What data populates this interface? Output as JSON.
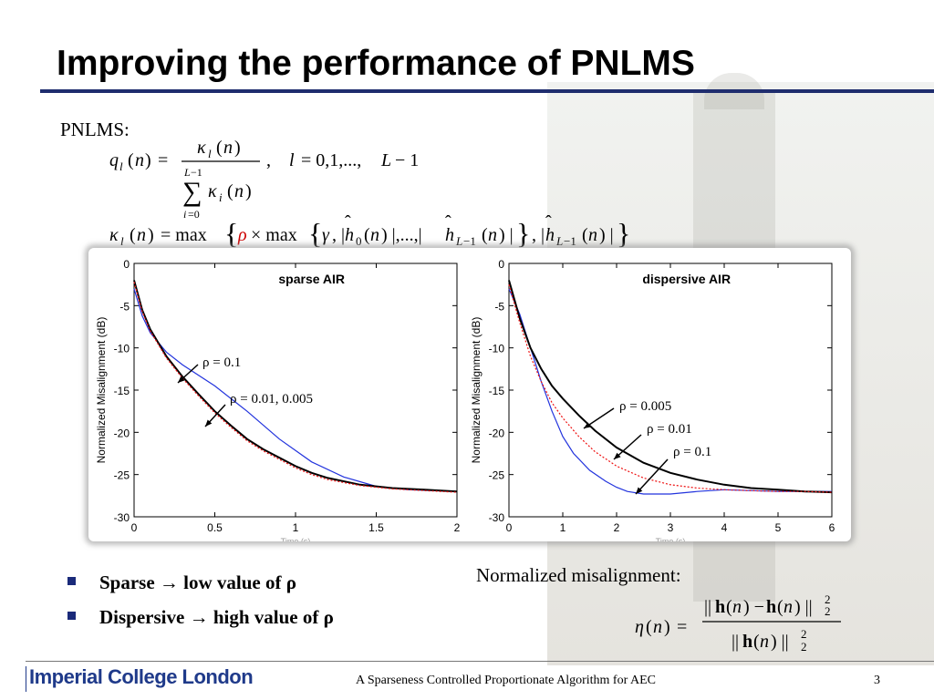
{
  "slide": {
    "title": "Improving the performance of PNLMS",
    "pnlms_label": "PNLMS:",
    "footer": "A Sparseness Controlled Proportionate Algorithm for AEC",
    "page_number": "3",
    "logo": "Imperial College London"
  },
  "bullets": [
    {
      "label": "Sparse →  low value of ρ"
    },
    {
      "label": "Dispersive → high value of ρ"
    }
  ],
  "misalignment_label": "Normalized misalignment:",
  "colors": {
    "title_rule": "#1f2d6e",
    "bullet": "#1a2a7a",
    "logo": "#1f3a8a",
    "rho": "#cc0000"
  },
  "chart_data": [
    {
      "type": "line",
      "title": "sparse AIR",
      "xlabel": "Time (s)",
      "ylabel": "Normalized Misalignment (dB)",
      "xlim": [
        0,
        2
      ],
      "ylim": [
        -30,
        0
      ],
      "xticks": [
        "0",
        "0.5",
        "1",
        "1.5",
        "2"
      ],
      "yticks": [
        "0",
        "-5",
        "-10",
        "-15",
        "-20",
        "-25",
        "-30"
      ],
      "annotations": [
        "ρ = 0.1",
        "ρ = 0.01,  0.005"
      ],
      "series": [
        {
          "color": "#2233dd",
          "x": [
            0,
            0.05,
            0.1,
            0.2,
            0.3,
            0.5,
            0.7,
            0.9,
            1.1,
            1.3,
            1.5,
            1.7,
            2.0
          ],
          "y": [
            -3,
            -6.2,
            -8.2,
            -10.5,
            -12,
            -14.5,
            -17.5,
            -20.8,
            -23.5,
            -25.3,
            -26.4,
            -26.8,
            -27
          ]
        },
        {
          "color": "#000000",
          "x": [
            0,
            0.05,
            0.1,
            0.2,
            0.3,
            0.4,
            0.5,
            0.6,
            0.7,
            0.8,
            0.9,
            1.0,
            1.1,
            1.2,
            1.4,
            1.6,
            1.8,
            2.0
          ],
          "y": [
            -2,
            -5.5,
            -7.8,
            -11,
            -13.4,
            -15.5,
            -17.5,
            -19.2,
            -20.8,
            -22,
            -23,
            -24,
            -24.8,
            -25.4,
            -26.2,
            -26.6,
            -26.8,
            -27
          ]
        },
        {
          "color": "#ee1111",
          "dashed": true,
          "x": [
            0,
            0.05,
            0.1,
            0.2,
            0.3,
            0.4,
            0.5,
            0.6,
            0.7,
            0.8,
            0.9,
            1.0,
            1.1,
            1.2,
            1.4,
            1.6,
            1.8,
            2.0
          ],
          "y": [
            -2.2,
            -5.7,
            -8,
            -11.2,
            -13.6,
            -15.7,
            -17.7,
            -19.4,
            -21,
            -22.2,
            -23.2,
            -24.2,
            -25,
            -25.6,
            -26.3,
            -26.7,
            -26.9,
            -27.1
          ]
        }
      ]
    },
    {
      "type": "line",
      "title": "dispersive AIR",
      "xlabel": "Time (s)",
      "ylabel": "Normalized Misalignment (dB)",
      "xlim": [
        0,
        6
      ],
      "ylim": [
        -30,
        0
      ],
      "xticks": [
        "0",
        "1",
        "2",
        "3",
        "4",
        "5",
        "6"
      ],
      "yticks": [
        "0",
        "-5",
        "-10",
        "-15",
        "-20",
        "-25",
        "-30"
      ],
      "annotations": [
        "ρ = 0.005",
        "ρ = 0.01",
        "ρ = 0.1"
      ],
      "series": [
        {
          "color": "#2233dd",
          "x": [
            0,
            0.2,
            0.4,
            0.6,
            0.8,
            1.0,
            1.2,
            1.5,
            1.8,
            2.0,
            2.2,
            2.5,
            3.0,
            3.5,
            4.0,
            5.0,
            6.0
          ],
          "y": [
            -3,
            -6,
            -10,
            -14,
            -17.5,
            -20.5,
            -22.5,
            -24.5,
            -25.8,
            -26.5,
            -27,
            -27.3,
            -27.3,
            -27,
            -26.8,
            -27,
            -27
          ]
        },
        {
          "color": "#000000",
          "x": [
            0,
            0.2,
            0.4,
            0.6,
            0.8,
            1.0,
            1.3,
            1.6,
            2.0,
            2.5,
            3.0,
            3.5,
            4.0,
            4.5,
            5.0,
            5.5,
            6.0
          ],
          "y": [
            -2,
            -6.5,
            -10,
            -12.5,
            -14.5,
            -16,
            -18,
            -19.8,
            -21.8,
            -23.6,
            -24.8,
            -25.6,
            -26.2,
            -26.6,
            -26.8,
            -27,
            -27.1
          ]
        },
        {
          "color": "#ee1111",
          "dashed": true,
          "x": [
            0,
            0.2,
            0.4,
            0.6,
            0.8,
            1.0,
            1.3,
            1.6,
            2.0,
            2.5,
            3.0,
            3.5,
            4.0,
            4.5,
            5.0,
            5.5,
            6.0
          ],
          "y": [
            -2.5,
            -7,
            -11,
            -14,
            -16.5,
            -18.3,
            -20.5,
            -22.3,
            -24,
            -25.4,
            -26.2,
            -26.6,
            -26.8,
            -26.9,
            -27,
            -27,
            -27.1
          ]
        }
      ]
    }
  ]
}
